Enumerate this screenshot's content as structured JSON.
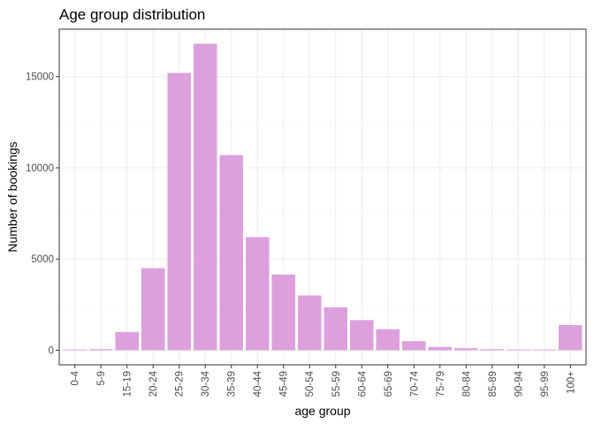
{
  "chart_data": {
    "type": "bar",
    "title": "Age group distribution",
    "xlabel": "age group",
    "ylabel": "Number of bookings",
    "categories": [
      "0-4",
      "5-9",
      "15-19",
      "20-24",
      "25-29",
      "30-34",
      "35-39",
      "40-44",
      "45-49",
      "50-54",
      "55-59",
      "60-64",
      "65-69",
      "70-74",
      "75-79",
      "80-84",
      "85-89",
      "90-94",
      "95-99",
      "100+"
    ],
    "values": [
      40,
      60,
      1000,
      4500,
      15200,
      16800,
      10700,
      6200,
      4150,
      3000,
      2350,
      1650,
      1150,
      500,
      180,
      110,
      60,
      40,
      40,
      1380
    ],
    "ylim": [
      -800,
      17600
    ],
    "yticks": [
      0,
      5000,
      10000,
      15000
    ],
    "ytick_labels": [
      "0",
      "5000",
      "10000",
      "15000"
    ],
    "grid": true,
    "bar_color": "#dda0dd"
  }
}
